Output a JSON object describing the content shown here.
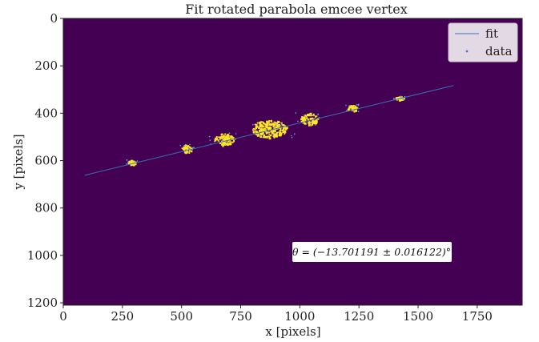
{
  "chart_data": {
    "type": "scatter",
    "title": "Fit rotated parabola emcee vertex",
    "xlabel": "x [pixels]",
    "ylabel": "y [pixels]",
    "xlim": [
      0,
      1940
    ],
    "ylim": [
      1210,
      0
    ],
    "y_inverted": true,
    "background_color": "#440154",
    "data_color": "#fde725",
    "fit_color": "#3b6fb6",
    "grid": false,
    "legend_placement": "top-right",
    "x_ticks": [
      "0",
      "250",
      "500",
      "750",
      "1000",
      "1250",
      "1500",
      "1750"
    ],
    "y_ticks": [
      "0",
      "200",
      "400",
      "600",
      "800",
      "1000",
      "1200"
    ],
    "series": [
      {
        "name": "fit",
        "kind": "line",
        "x": [
          90,
          1650
        ],
        "y": [
          662,
          283
        ]
      },
      {
        "name": "data",
        "kind": "scatter",
        "clusters": [
          {
            "x": 290,
            "y": 606,
            "rx": 18,
            "ry": 10
          },
          {
            "x": 520,
            "y": 548,
            "rx": 22,
            "ry": 16
          },
          {
            "x": 680,
            "y": 509,
            "rx": 42,
            "ry": 26
          },
          {
            "x": 870,
            "y": 465,
            "rx": 75,
            "ry": 38
          },
          {
            "x": 1040,
            "y": 423,
            "rx": 38,
            "ry": 25
          },
          {
            "x": 1220,
            "y": 378,
            "rx": 20,
            "ry": 14
          },
          {
            "x": 1420,
            "y": 335,
            "rx": 18,
            "ry": 7
          }
        ]
      }
    ],
    "annotation": "θ = (−13.701191 ± 0.016122)°"
  }
}
